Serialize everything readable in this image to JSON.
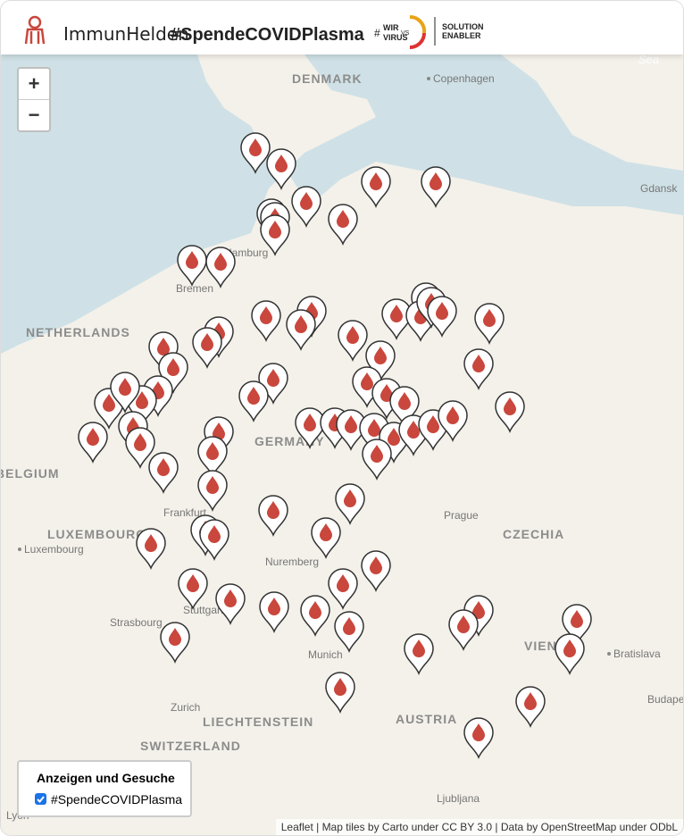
{
  "header": {
    "brand": "ImmunHelden",
    "hashtag": "#SpendeCOVIDPlasma",
    "partner": {
      "hash": "#",
      "wir": "WIR",
      "vs": "VS",
      "virus": "VIRUS",
      "line1": "SOLUTION",
      "line2": "ENABLER"
    }
  },
  "zoom": {
    "in": "+",
    "out": "−"
  },
  "map_labels": [
    "DENMARK",
    "Copenhagen",
    "Sea",
    "Gdansk",
    "Hamburg",
    "Bremen",
    "NETHERLANDS",
    "GERMANY",
    "BELGIUM",
    "LUXEMBOURG",
    "Luxembourg",
    "Frankfurt",
    "Prague",
    "CZECHIA",
    "Nuremberg",
    "Strasbourg",
    "Stuttgart",
    "Munich",
    "VIENNA",
    "Bratislava",
    "Budapest",
    "Zurich",
    "LIECHTENSTEIN",
    "AUSTRIA",
    "SWITZERLAND",
    "Ljubljana",
    "Lyon"
  ],
  "legend": {
    "title": "Anzeigen und Gesuche",
    "option": "#SpendeCOVIDPlasma"
  },
  "attribution": "Leaflet | Map tiles by Carto under CC BY 3.0 | Data by OpenStreetMap under ODbL"
}
